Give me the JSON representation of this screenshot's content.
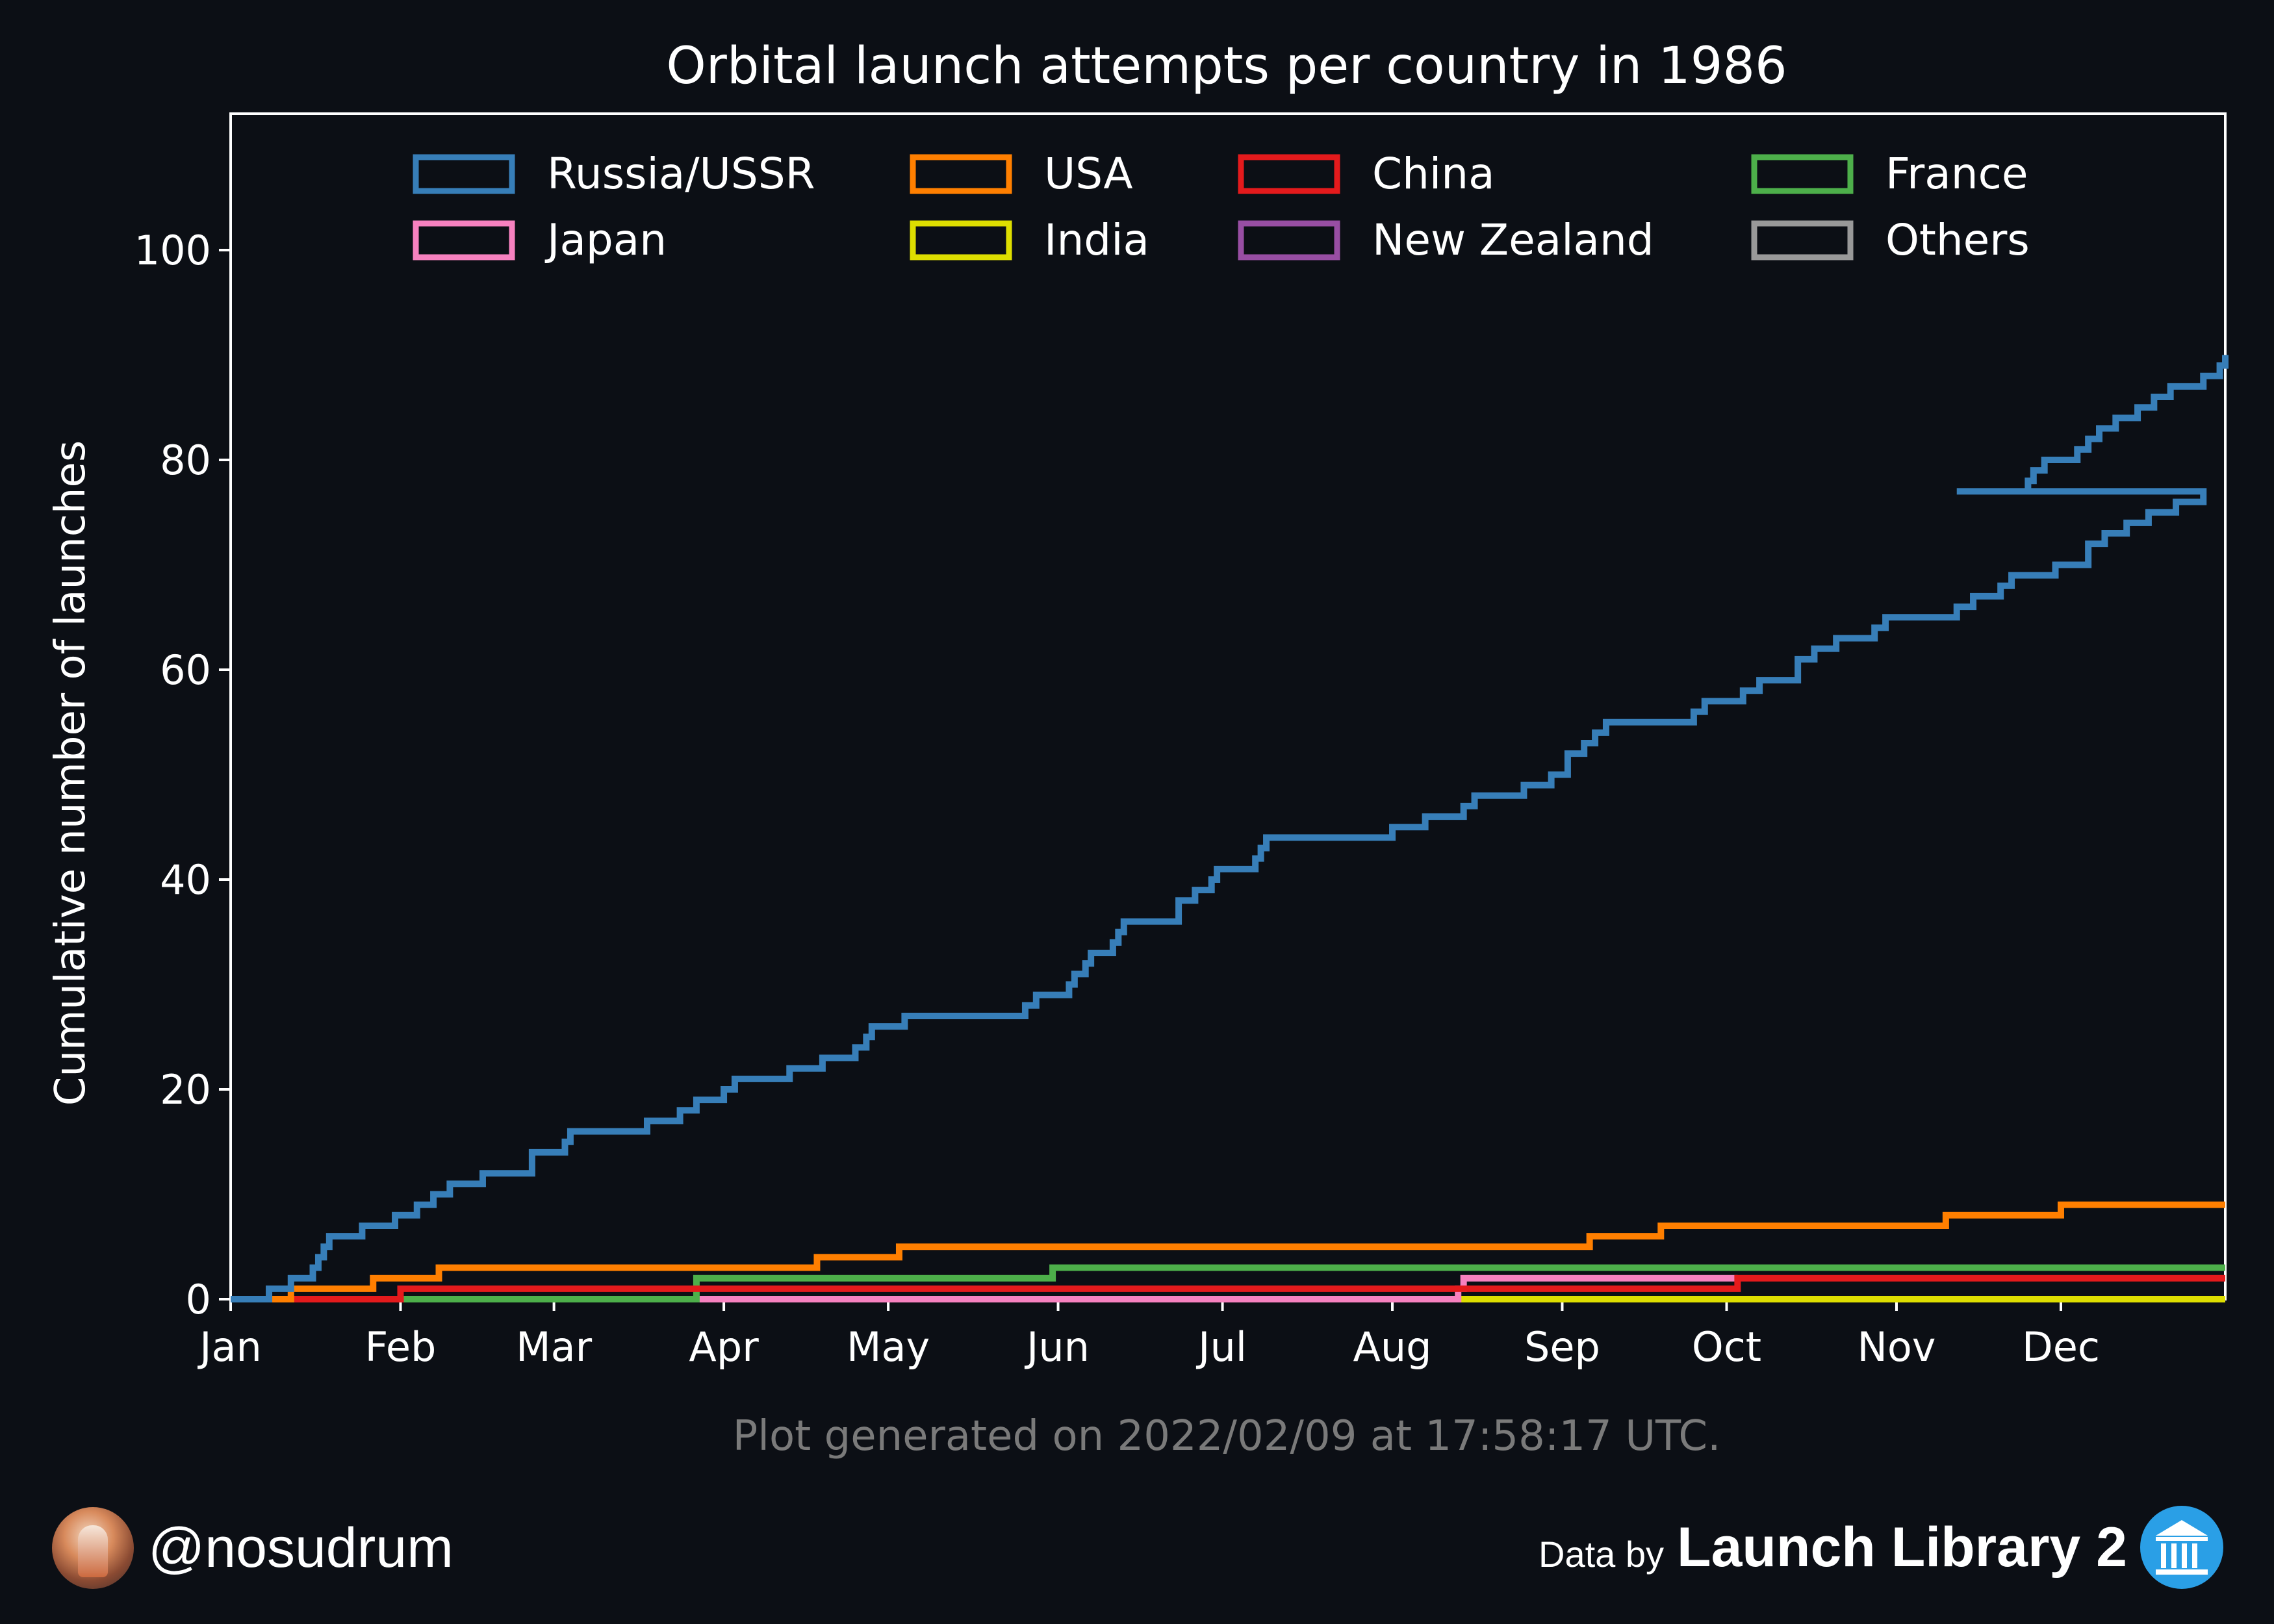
{
  "chart_data": {
    "type": "line",
    "step": true,
    "title": "Orbital launch attempts per country in 1986",
    "ylabel": "Cumulative number of launches",
    "xlabel": "",
    "x_ticks": [
      "Jan",
      "Feb",
      "Mar",
      "Apr",
      "May",
      "Jun",
      "Jul",
      "Aug",
      "Sep",
      "Oct",
      "Nov",
      "Dec"
    ],
    "x_unit": "day of year 1986",
    "xlim": [
      1,
      365
    ],
    "ylim": [
      0,
      113
    ],
    "y_ticks": [
      "0",
      "20",
      "40",
      "60",
      "80",
      "100"
    ],
    "legend_position": "top",
    "grid": false,
    "series": [
      {
        "name": "Russia/USSR",
        "color": "#377eb8",
        "points": [
          [
            1,
            0
          ],
          [
            8,
            1
          ],
          [
            12,
            2
          ],
          [
            16,
            3
          ],
          [
            17,
            4
          ],
          [
            18,
            5
          ],
          [
            19,
            6
          ],
          [
            25,
            7
          ],
          [
            31,
            8
          ],
          [
            35,
            9
          ],
          [
            38,
            10
          ],
          [
            41,
            11
          ],
          [
            47,
            12
          ],
          [
            56,
            14
          ],
          [
            62,
            15
          ],
          [
            63,
            16
          ],
          [
            77,
            17
          ],
          [
            83,
            18
          ],
          [
            86,
            19
          ],
          [
            91,
            20
          ],
          [
            93,
            21
          ],
          [
            103,
            22
          ],
          [
            109,
            23
          ],
          [
            115,
            24
          ],
          [
            117,
            25
          ],
          [
            118,
            26
          ],
          [
            124,
            27
          ],
          [
            146,
            28
          ],
          [
            148,
            29
          ],
          [
            154,
            30
          ],
          [
            155,
            31
          ],
          [
            157,
            32
          ],
          [
            158,
            33
          ],
          [
            162,
            34
          ],
          [
            163,
            35
          ],
          [
            164,
            36
          ],
          [
            174,
            38
          ],
          [
            177,
            39
          ],
          [
            180,
            40
          ],
          [
            181,
            41
          ],
          [
            188,
            42
          ],
          [
            189,
            43
          ],
          [
            190,
            44
          ],
          [
            213,
            45
          ],
          [
            219,
            46
          ],
          [
            226,
            47
          ],
          [
            228,
            48
          ],
          [
            237,
            49
          ],
          [
            242,
            50
          ],
          [
            245,
            52
          ],
          [
            248,
            53
          ],
          [
            250,
            54
          ],
          [
            252,
            55
          ],
          [
            268,
            56
          ],
          [
            270,
            57
          ],
          [
            277,
            58
          ],
          [
            280,
            59
          ],
          [
            287,
            61
          ],
          [
            290,
            62
          ],
          [
            294,
            63
          ],
          [
            301,
            64
          ],
          [
            303,
            65
          ],
          [
            316,
            66
          ],
          [
            319,
            67
          ],
          [
            324,
            68
          ],
          [
            326,
            69
          ],
          [
            334,
            70
          ],
          [
            340,
            72
          ],
          [
            343,
            73
          ],
          [
            347,
            74
          ],
          [
            351,
            75
          ],
          [
            356,
            76
          ],
          [
            361,
            77
          ],
          [
            316,
            77
          ],
          [
            329,
            78
          ],
          [
            330,
            79
          ],
          [
            332,
            80
          ],
          [
            338,
            81
          ],
          [
            340,
            82
          ],
          [
            342,
            83
          ],
          [
            345,
            84
          ],
          [
            349,
            85
          ],
          [
            352,
            86
          ],
          [
            355,
            87
          ],
          [
            361,
            88
          ],
          [
            364,
            89
          ],
          [
            365,
            90
          ]
        ]
      },
      {
        "name": "USA",
        "color": "#ff7f00",
        "points": [
          [
            1,
            0
          ],
          [
            12,
            1
          ],
          [
            27,
            2
          ],
          [
            39,
            3
          ],
          [
            108,
            4
          ],
          [
            123,
            5
          ],
          [
            249,
            6
          ],
          [
            262,
            7
          ],
          [
            314,
            8
          ],
          [
            335,
            9
          ],
          [
            365,
            9
          ]
        ]
      },
      {
        "name": "China",
        "color": "#e41a1c",
        "points": [
          [
            1,
            0
          ],
          [
            32,
            1
          ],
          [
            276,
            2
          ],
          [
            365,
            2
          ]
        ]
      },
      {
        "name": "France",
        "color": "#4daf4a",
        "points": [
          [
            1,
            0
          ],
          [
            86,
            2
          ],
          [
            151,
            3
          ],
          [
            365,
            3
          ]
        ]
      },
      {
        "name": "Japan",
        "color": "#f781bf",
        "points": [
          [
            1,
            0
          ],
          [
            225,
            1
          ],
          [
            226,
            2
          ],
          [
            275,
            2
          ],
          [
            276,
            2
          ]
        ]
      },
      {
        "name": "India",
        "color": "#dede00",
        "points": [
          [
            1,
            0
          ],
          [
            365,
            0
          ]
        ]
      },
      {
        "name": "New Zealand",
        "color": "#984ea3",
        "points": [
          [
            1,
            0
          ],
          [
            365,
            0
          ]
        ]
      },
      {
        "name": "Others",
        "color": "#999999",
        "points": [
          [
            1,
            0
          ],
          [
            365,
            0
          ]
        ]
      }
    ]
  },
  "footer": {
    "generated": "Plot generated on 2022/02/09 at 17:58:17 UTC.",
    "handle": "@nosudrum",
    "data_by": "Data by",
    "brand": "Launch Library 2"
  }
}
